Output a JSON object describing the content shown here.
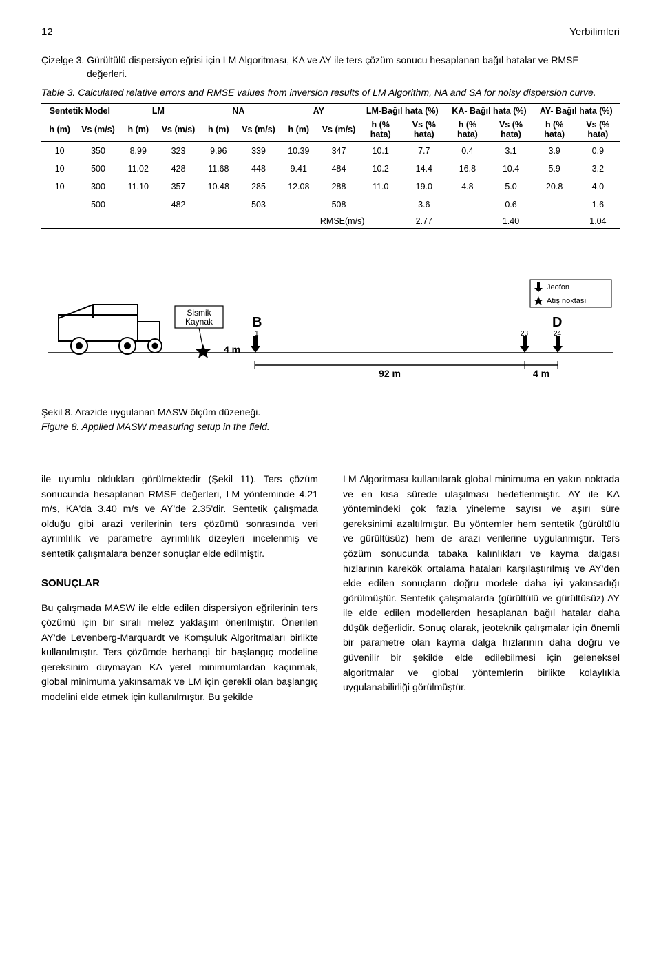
{
  "header": {
    "page_num": "12",
    "journal": "Yerbilimleri"
  },
  "table3": {
    "caption_tr_label": "Çizelge 3.",
    "caption_tr_text": "Gürültülü dispersiyon eğrisi için LM Algoritması,  KA ve AY ile ters çözüm sonucu hesaplanan bağıl hatalar ve RMSE değerleri.",
    "caption_en_label": "Table 3.",
    "caption_en_text": "Calculated relative errors and RMSE values from inversion results of LM Algorithm, NA and SA for noisy dispersion curve.",
    "head": {
      "col0": "Sentetik Model",
      "col1": "LM",
      "col2": "NA",
      "col3": "AY",
      "col4": "LM-Bağıl hata (%)",
      "col5": "KA- Bağıl hata (%)",
      "col6": "AY- Bağıl hata (%)",
      "sub_h": "h (m)",
      "sub_vs": "Vs (m/s)",
      "sub_hh": "h (% hata)",
      "sub_vh": "Vs (% hata)"
    },
    "rows": [
      [
        "10",
        "350",
        "8.99",
        "323",
        "9.96",
        "339",
        "10.39",
        "347",
        "10.1",
        "7.7",
        "0.4",
        "3.1",
        "3.9",
        "0.9"
      ],
      [
        "10",
        "500",
        "11.02",
        "428",
        "11.68",
        "448",
        "9.41",
        "484",
        "10.2",
        "14.4",
        "16.8",
        "10.4",
        "5.9",
        "3.2"
      ],
      [
        "10",
        "300",
        "11.10",
        "357",
        "10.48",
        "285",
        "12.08",
        "288",
        "11.0",
        "19.0",
        "4.8",
        "5.0",
        "20.8",
        "4.0"
      ],
      [
        "",
        "500",
        "",
        "482",
        "",
        "503",
        "",
        "508",
        "",
        "3.6",
        "",
        "0.6",
        "",
        "1.6"
      ]
    ],
    "rmse": {
      "label": "RMSE(m/s)",
      "vals": [
        "2.77",
        "1.40",
        "1.04"
      ]
    }
  },
  "figure8": {
    "caption_tr": "Şekil 8.   Arazide uygulanan MASW ölçüm düzeneği.",
    "caption_en": "Figure 8. Applied MASW measuring setup in the field.",
    "labels": {
      "sismik": "Sismik Kaynak",
      "B": "B",
      "D": "D",
      "one": "1",
      "twentythree": "23",
      "twentyfour": "24",
      "m4a": "4 m",
      "m92": "92 m",
      "m4b": "4 m",
      "jeofon": "Jeofon",
      "atis": "Atış noktası"
    }
  },
  "body": {
    "left": {
      "p1": "ile uyumlu oldukları görülmektedir (Şekil 11). Ters çözüm sonucunda hesaplanan RMSE değerleri, LM yönteminde 4.21 m/s, KA'da 3.40 m/s ve AY'de 2.35'dir. Sentetik çalışmada olduğu gibi arazi verilerinin ters çözümü sonrasında veri ayrımlılık ve parametre ayrımlılık dizeyleri incelenmiş ve sentetik çalışmalara benzer sonuçlar elde edilmiştir.",
      "h": "SONUÇLAR",
      "p2": "Bu çalışmada MASW ile elde edilen dispersiyon eğrilerinin ters çözümü için bir sıralı melez yaklaşım önerilmiştir. Önerilen AY'de Levenberg-Marquardt ve Komşuluk Algoritmaları birlikte kullanılmıştır. Ters çözümde herhangi bir başlangıç modeline gereksinim duymayan KA yerel minimumlardan kaçınmak, global minimuma yakınsamak ve LM için gerekli olan başlangıç modelini elde etmek için kullanılmıştır. Bu şekilde"
    },
    "right": {
      "p1": "LM Algoritması kullanılarak global minimuma en yakın noktada ve en kısa sürede ulaşılması hedeflenmiştir. AY ile KA yöntemindeki çok fazla yineleme sayısı ve aşırı süre gereksinimi azaltılmıştır. Bu yöntemler hem sentetik (gürültülü ve gürültüsüz) hem de arazi verilerine uygulanmıştır. Ters çözüm sonucunda tabaka kalınlıkları ve kayma dalgası hızlarının karekök ortalama hataları karşılaştırılmış ve AY'den elde edilen sonuçların doğru modele daha iyi yakınsadığı görülmüştür. Sentetik çalışmalarda (gürültülü ve gürültüsüz) AY ile elde edilen modellerden hesaplanan bağıl hatalar daha düşük değerlidir. Sonuç olarak, jeoteknik çalışmalar için önemli bir parametre olan kayma dalga hızlarının daha doğru ve güvenilir bir şekilde elde edilebilmesi için geleneksel algoritmalar ve global yöntemlerin birlikte kolaylıkla uygulanabilirliği görülmüştür."
    }
  }
}
